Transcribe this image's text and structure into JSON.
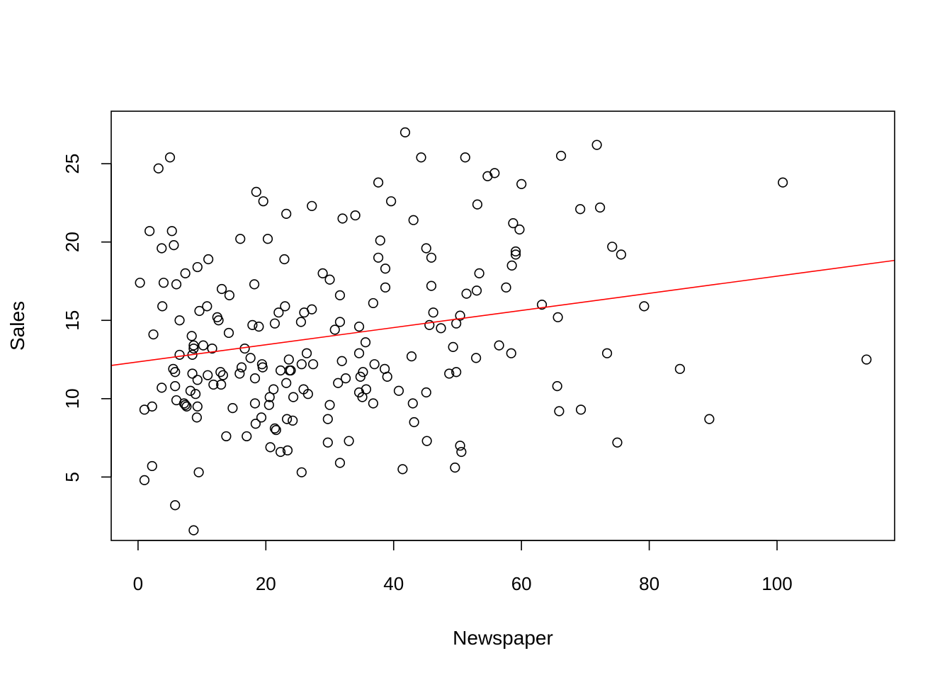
{
  "chart_data": {
    "type": "scatter",
    "title": "",
    "xlabel": "Newspaper",
    "ylabel": "Sales",
    "xlim": [
      -4.2,
      118.4
    ],
    "ylim": [
      0.95,
      28.35
    ],
    "x_ticks": [
      0,
      20,
      40,
      60,
      80,
      100
    ],
    "y_ticks": [
      5,
      10,
      15,
      20,
      25
    ],
    "grid": false,
    "legend": "none",
    "points_color": "#000000",
    "fit_line": {
      "color": "#ff0000",
      "intercept": 12.35,
      "slope": 0.0547
    },
    "points": [
      [
        0.3,
        17.4
      ],
      [
        1.0,
        9.3
      ],
      [
        1.0,
        4.8
      ],
      [
        1.8,
        20.7
      ],
      [
        2.2,
        5.7
      ],
      [
        2.2,
        9.5
      ],
      [
        2.4,
        14.1
      ],
      [
        3.2,
        24.7
      ],
      [
        3.7,
        19.6
      ],
      [
        3.7,
        10.7
      ],
      [
        3.8,
        15.9
      ],
      [
        4.0,
        17.4
      ],
      [
        5.0,
        25.4
      ],
      [
        5.3,
        20.7
      ],
      [
        5.5,
        11.9
      ],
      [
        5.6,
        19.8
      ],
      [
        5.8,
        10.8
      ],
      [
        5.8,
        11.7
      ],
      [
        5.8,
        3.2
      ],
      [
        6.0,
        17.3
      ],
      [
        6.0,
        9.9
      ],
      [
        6.5,
        15.0
      ],
      [
        6.5,
        12.8
      ],
      [
        7.2,
        9.7
      ],
      [
        7.4,
        9.6
      ],
      [
        7.4,
        18.0
      ],
      [
        7.6,
        9.5
      ],
      [
        8.2,
        10.5
      ],
      [
        8.4,
        14.0
      ],
      [
        8.5,
        11.6
      ],
      [
        8.5,
        12.8
      ],
      [
        8.7,
        13.2
      ],
      [
        8.7,
        13.4
      ],
      [
        8.7,
        1.6
      ],
      [
        9.0,
        10.3
      ],
      [
        9.2,
        8.8
      ],
      [
        9.3,
        11.2
      ],
      [
        9.3,
        18.4
      ],
      [
        9.3,
        9.5
      ],
      [
        9.5,
        5.3
      ],
      [
        9.6,
        15.6
      ],
      [
        10.2,
        13.4
      ],
      [
        10.8,
        15.9
      ],
      [
        10.9,
        11.5
      ],
      [
        11.0,
        18.9
      ],
      [
        11.6,
        13.2
      ],
      [
        11.8,
        10.9
      ],
      [
        12.4,
        15.2
      ],
      [
        12.6,
        15.0
      ],
      [
        12.9,
        11.7
      ],
      [
        13.0,
        10.9
      ],
      [
        13.1,
        17.0
      ],
      [
        13.3,
        11.5
      ],
      [
        13.8,
        7.6
      ],
      [
        14.2,
        14.2
      ],
      [
        14.3,
        16.6
      ],
      [
        14.8,
        9.4
      ],
      [
        15.9,
        11.6
      ],
      [
        16.0,
        20.2
      ],
      [
        16.2,
        12.0
      ],
      [
        16.7,
        13.2
      ],
      [
        17.0,
        7.6
      ],
      [
        17.6,
        12.6
      ],
      [
        17.9,
        14.7
      ],
      [
        18.2,
        17.3
      ],
      [
        18.3,
        11.3
      ],
      [
        18.3,
        9.7
      ],
      [
        18.4,
        8.4
      ],
      [
        18.5,
        23.2
      ],
      [
        18.9,
        14.6
      ],
      [
        19.3,
        8.8
      ],
      [
        19.4,
        12.2
      ],
      [
        19.5,
        12.0
      ],
      [
        19.6,
        22.6
      ],
      [
        20.3,
        20.2
      ],
      [
        20.5,
        9.6
      ],
      [
        20.6,
        10.1
      ],
      [
        20.7,
        6.9
      ],
      [
        21.2,
        10.6
      ],
      [
        21.4,
        14.8
      ],
      [
        21.4,
        8.1
      ],
      [
        21.6,
        8.0
      ],
      [
        22.0,
        15.5
      ],
      [
        22.3,
        11.8
      ],
      [
        22.3,
        6.6
      ],
      [
        22.9,
        18.9
      ],
      [
        23.0,
        15.9
      ],
      [
        23.2,
        11.0
      ],
      [
        23.2,
        21.8
      ],
      [
        23.3,
        8.7
      ],
      [
        23.4,
        6.7
      ],
      [
        23.6,
        12.5
      ],
      [
        23.7,
        11.8
      ],
      [
        23.9,
        11.8
      ],
      [
        24.2,
        8.6
      ],
      [
        24.3,
        10.1
      ],
      [
        25.5,
        14.9
      ],
      [
        25.6,
        12.2
      ],
      [
        25.6,
        5.3
      ],
      [
        25.9,
        10.6
      ],
      [
        26.0,
        15.5
      ],
      [
        26.4,
        12.9
      ],
      [
        26.6,
        10.3
      ],
      [
        27.2,
        15.7
      ],
      [
        27.2,
        22.3
      ],
      [
        27.4,
        12.2
      ],
      [
        28.9,
        18.0
      ],
      [
        29.7,
        8.7
      ],
      [
        29.7,
        7.2
      ],
      [
        30.0,
        9.6
      ],
      [
        30.0,
        17.6
      ],
      [
        30.8,
        14.4
      ],
      [
        31.3,
        11.0
      ],
      [
        31.6,
        14.9
      ],
      [
        31.6,
        16.6
      ],
      [
        31.6,
        5.9
      ],
      [
        31.9,
        12.4
      ],
      [
        32.0,
        21.5
      ],
      [
        32.5,
        11.3
      ],
      [
        33.0,
        7.3
      ],
      [
        34.0,
        21.7
      ],
      [
        34.6,
        10.4
      ],
      [
        34.6,
        14.6
      ],
      [
        34.6,
        12.9
      ],
      [
        34.8,
        11.4
      ],
      [
        35.1,
        10.1
      ],
      [
        35.2,
        11.7
      ],
      [
        35.6,
        13.6
      ],
      [
        35.7,
        10.6
      ],
      [
        36.8,
        9.7
      ],
      [
        36.8,
        16.1
      ],
      [
        37.0,
        12.2
      ],
      [
        37.6,
        23.8
      ],
      [
        37.6,
        19.0
      ],
      [
        37.9,
        20.1
      ],
      [
        38.6,
        11.9
      ],
      [
        38.7,
        18.3
      ],
      [
        38.7,
        17.1
      ],
      [
        39.0,
        11.4
      ],
      [
        39.6,
        22.6
      ],
      [
        40.8,
        10.5
      ],
      [
        41.4,
        5.5
      ],
      [
        41.8,
        27.0
      ],
      [
        42.8,
        12.7
      ],
      [
        43.0,
        9.7
      ],
      [
        43.1,
        21.4
      ],
      [
        43.2,
        8.5
      ],
      [
        44.3,
        25.4
      ],
      [
        45.1,
        10.4
      ],
      [
        45.1,
        19.6
      ],
      [
        45.2,
        7.3
      ],
      [
        45.6,
        14.7
      ],
      [
        45.9,
        19.0
      ],
      [
        45.9,
        17.2
      ],
      [
        46.2,
        15.5
      ],
      [
        47.4,
        14.5
      ],
      [
        48.7,
        11.6
      ],
      [
        49.3,
        13.3
      ],
      [
        49.6,
        5.6
      ],
      [
        49.8,
        11.7
      ],
      [
        49.8,
        14.8
      ],
      [
        50.4,
        7.0
      ],
      [
        50.4,
        15.3
      ],
      [
        50.6,
        6.6
      ],
      [
        51.2,
        25.4
      ],
      [
        51.4,
        16.7
      ],
      [
        52.9,
        12.6
      ],
      [
        53.0,
        16.9
      ],
      [
        53.1,
        22.4
      ],
      [
        53.4,
        18.0
      ],
      [
        54.7,
        24.2
      ],
      [
        55.8,
        24.4
      ],
      [
        56.5,
        13.4
      ],
      [
        57.6,
        17.1
      ],
      [
        58.4,
        12.9
      ],
      [
        58.5,
        18.5
      ],
      [
        58.7,
        21.2
      ],
      [
        59.1,
        19.2
      ],
      [
        59.1,
        19.4
      ],
      [
        59.7,
        20.8
      ],
      [
        60.0,
        23.7
      ],
      [
        63.2,
        16.0
      ],
      [
        65.6,
        10.8
      ],
      [
        65.7,
        15.2
      ],
      [
        65.9,
        9.2
      ],
      [
        66.2,
        25.5
      ],
      [
        69.2,
        22.1
      ],
      [
        69.3,
        9.3
      ],
      [
        71.8,
        26.2
      ],
      [
        72.3,
        22.2
      ],
      [
        73.4,
        12.9
      ],
      [
        74.2,
        19.7
      ],
      [
        75.0,
        7.2
      ],
      [
        75.6,
        19.2
      ],
      [
        79.2,
        15.9
      ],
      [
        84.8,
        11.9
      ],
      [
        89.4,
        8.7
      ],
      [
        100.9,
        23.8
      ],
      [
        114.0,
        12.5
      ]
    ]
  }
}
